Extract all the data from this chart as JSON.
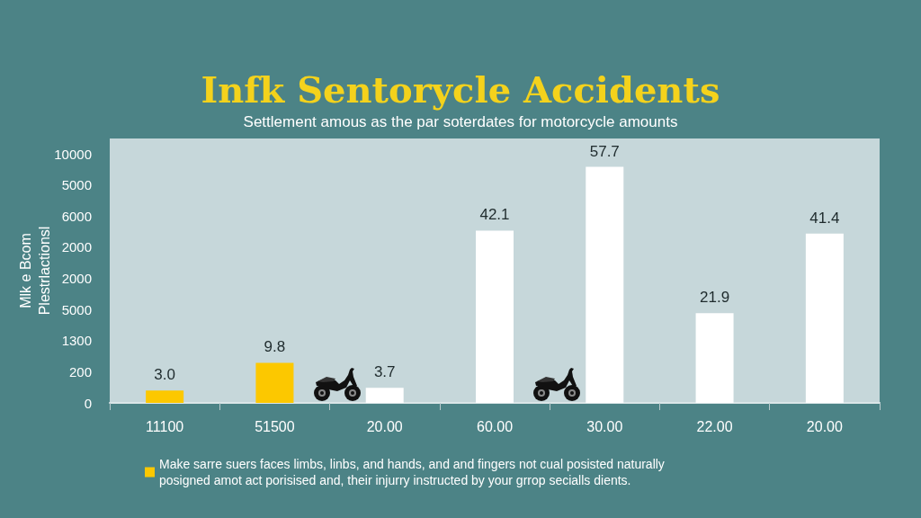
{
  "chart_data": {
    "type": "bar",
    "title": "Infk Sentorycle Accidents",
    "subtitle": "Settlement amous as the par soterdates for motorcycle amounts",
    "ylabel": "Mlk e Bcom Plestrlactionsl",
    "categories": [
      "11100",
      "51500",
      "20.00",
      "60.00",
      "30.00",
      "22.00",
      "20.00"
    ],
    "series": [
      {
        "name": "Make sarre suers faces limbs, linbs, and hands, and and fingers not cual posisted naturally posigned amot act porisised and, their injurry instructed by your grrop secialls dients.",
        "color": "#fcc800",
        "values": [
          3.0,
          9.8,
          null,
          null,
          null,
          null,
          null
        ],
        "value_labels": [
          "3.0",
          "9.8",
          null,
          null,
          null,
          null,
          null
        ]
      },
      {
        "color": "#ffffff",
        "values": [
          null,
          null,
          3.7,
          42.1,
          57.7,
          21.9,
          41.4
        ],
        "value_labels": [
          null,
          null,
          "3.7",
          "42.1",
          "57.7",
          "21.9",
          "41.4"
        ]
      }
    ],
    "annotations": [
      "10000",
      "5000",
      "6000",
      "2000",
      "2000",
      "5000",
      "1300",
      "200",
      "0"
    ],
    "legend": "bottom left"
  }
}
